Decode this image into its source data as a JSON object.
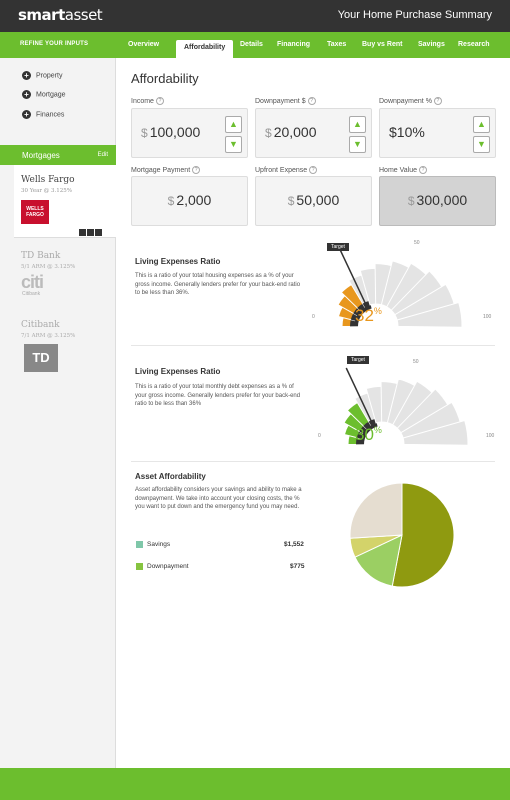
{
  "header": {
    "logo_bold": "smart",
    "logo_light": "asset",
    "title": "Your  Home Purchase Summary"
  },
  "nav": {
    "refine_label": "REFINE YOUR INPUTS",
    "tabs": [
      {
        "label": "Overview"
      },
      {
        "label": "Affordability"
      },
      {
        "label": "Details"
      },
      {
        "label": "Financing"
      },
      {
        "label": "Taxes"
      },
      {
        "label": "Buy vs Rent"
      },
      {
        "label": "Savings"
      },
      {
        "label": "Research"
      }
    ]
  },
  "sidebar": {
    "items": [
      {
        "label": "Property"
      },
      {
        "label": "Mortgage"
      },
      {
        "label": "Finances"
      }
    ],
    "mortgages_title": "Mortgages",
    "edit_label": "Edit",
    "lenders": [
      {
        "name": "Wells Fargo",
        "rate": "30 Year @ 3.125%",
        "logo": "WELLS FARGO"
      },
      {
        "name": "TD Bank",
        "rate": "5/1 ARM @ 3.125%",
        "logo": "citi",
        "logo_sub": "Citibank"
      },
      {
        "name": "Citibank",
        "rate": "7/1 ARM @ 3.125%",
        "logo": "TD"
      }
    ]
  },
  "main": {
    "title": "Affordability",
    "fields": [
      {
        "label": "Income",
        "currency": "$",
        "value": "100,000"
      },
      {
        "label": "Downpayment $",
        "currency": "$",
        "value": "20,000"
      },
      {
        "label": "Downpayment %",
        "value": "$10%"
      },
      {
        "label": "Mortgage Payment",
        "currency": "$",
        "value": "2,000"
      },
      {
        "label": "Upfront Expense",
        "currency": "$",
        "value": "50,000"
      },
      {
        "label": "Home Value",
        "currency": "$",
        "value": "300,000"
      }
    ],
    "help_glyph": "?",
    "stepper_up": "▲",
    "stepper_down": "▼"
  },
  "gauges": [
    {
      "title": "Living Expenses Ratio",
      "desc": "This is a ratio of your total housing expenses as a % of your gross income. Generally lenders prefer for your back-end ratio to be less than 36%.",
      "value": 32,
      "value_label": "32",
      "pct_sym": "%",
      "target_label": "Target",
      "min_label": "0",
      "mid_label": "50",
      "max_label": "100",
      "fill_color": "#e8971e",
      "target": 36
    },
    {
      "title": "Living Expenses Ratio",
      "desc": "This is a ratio of your total monthly debt expenses as a % of your gross income.  Generally lenders prefer for your back-end ratio to be less than 36%",
      "value": 30,
      "value_label": "30",
      "pct_sym": "%",
      "target_label": "Target",
      "min_label": "0",
      "mid_label": "50",
      "max_label": "100",
      "fill_color": "#6cbe2e",
      "target": 36
    }
  ],
  "asset": {
    "title": "Asset Affordability",
    "desc": "Asset affordability considers your savings and ability to make a downpayment.  We take into account your closing costs, the % you want to put down and the emergency fund you may need.",
    "legend": [
      {
        "label": "Savings",
        "value": "$1,552",
        "color": "#7fc7a9"
      },
      {
        "label": "Downpayment",
        "value": "$775",
        "color": "#86c440"
      }
    ]
  },
  "chart_data": {
    "type": "pie",
    "slices": [
      {
        "color": "#8f9a10",
        "value": 53
      },
      {
        "color": "#9bcf63",
        "value": 15
      },
      {
        "color": "#d3d36a",
        "value": 6
      },
      {
        "color": "#e5ddd0",
        "value": 26
      }
    ]
  }
}
